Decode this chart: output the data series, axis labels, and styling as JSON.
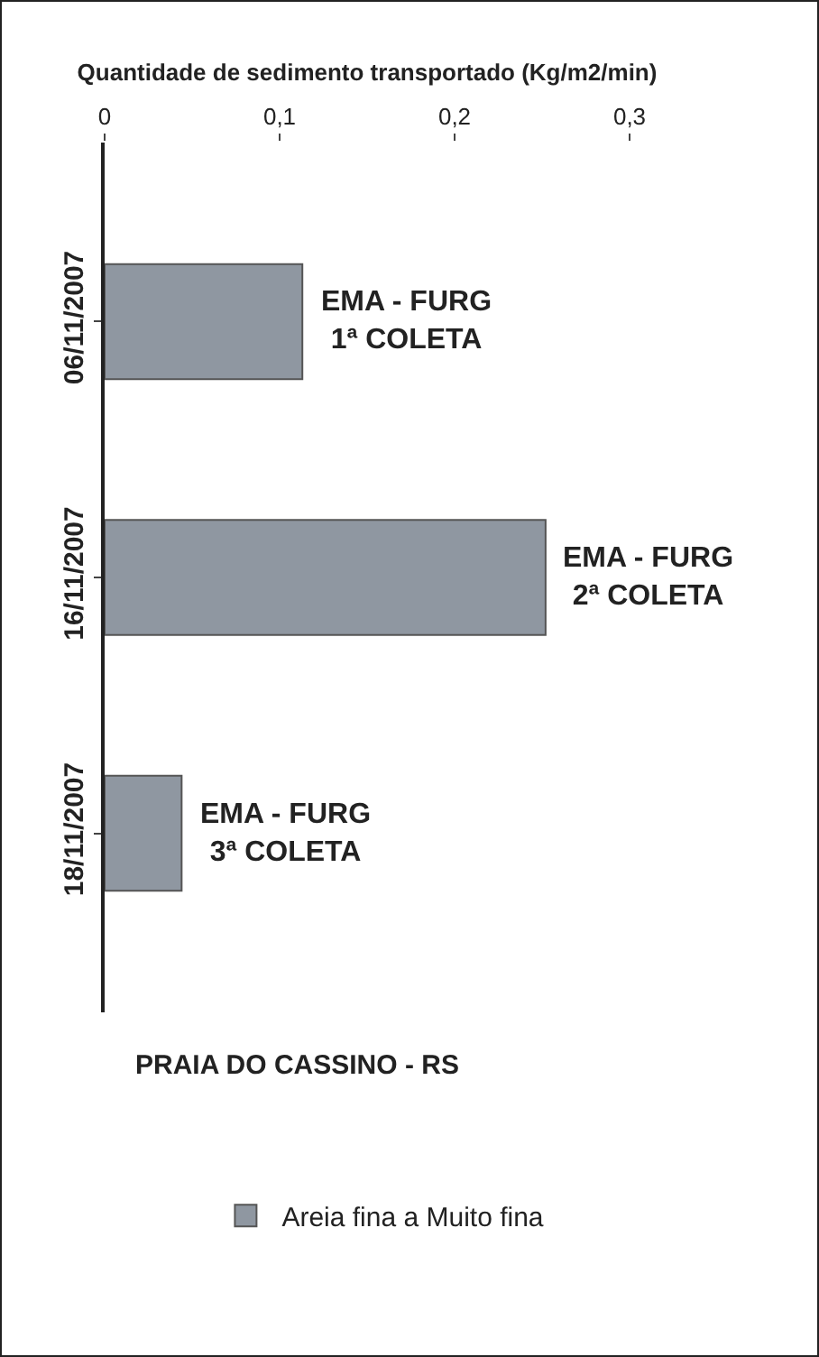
{
  "chart_data": {
    "type": "bar",
    "orientation": "horizontal",
    "xlabel": "Quantidade de sedimento transportado (Kg/m2/min)",
    "categories": [
      "06/11/2007",
      "16/11/2007",
      "18/11/2007"
    ],
    "series": [
      {
        "name": "Areia fina a Muito fina",
        "color": "#8f97a1",
        "values": [
          0.113,
          0.252,
          0.044
        ]
      }
    ],
    "xlim": [
      0,
      0.3
    ],
    "xticks": [
      0,
      {
        "value": 0.1,
        "label": "0,1"
      },
      {
        "value": 0.2,
        "label": "0,2"
      },
      {
        "value": 0.3,
        "label": "0,3"
      }
    ],
    "grid": false,
    "legend": "bottom",
    "annotations": [
      {
        "text": "EMA - FURG\n1ª COLETA",
        "x": 0.113,
        "y": "06/11/2007"
      },
      {
        "text": "EMA - FURG\n2ª COLETA",
        "x": 0.252,
        "y": "16/11/2007"
      },
      {
        "text": "EMA - FURG\n3ª COLETA",
        "x": 0.044,
        "y": "18/11/2007"
      },
      "PRAIA DO CASSINO - RS"
    ]
  }
}
